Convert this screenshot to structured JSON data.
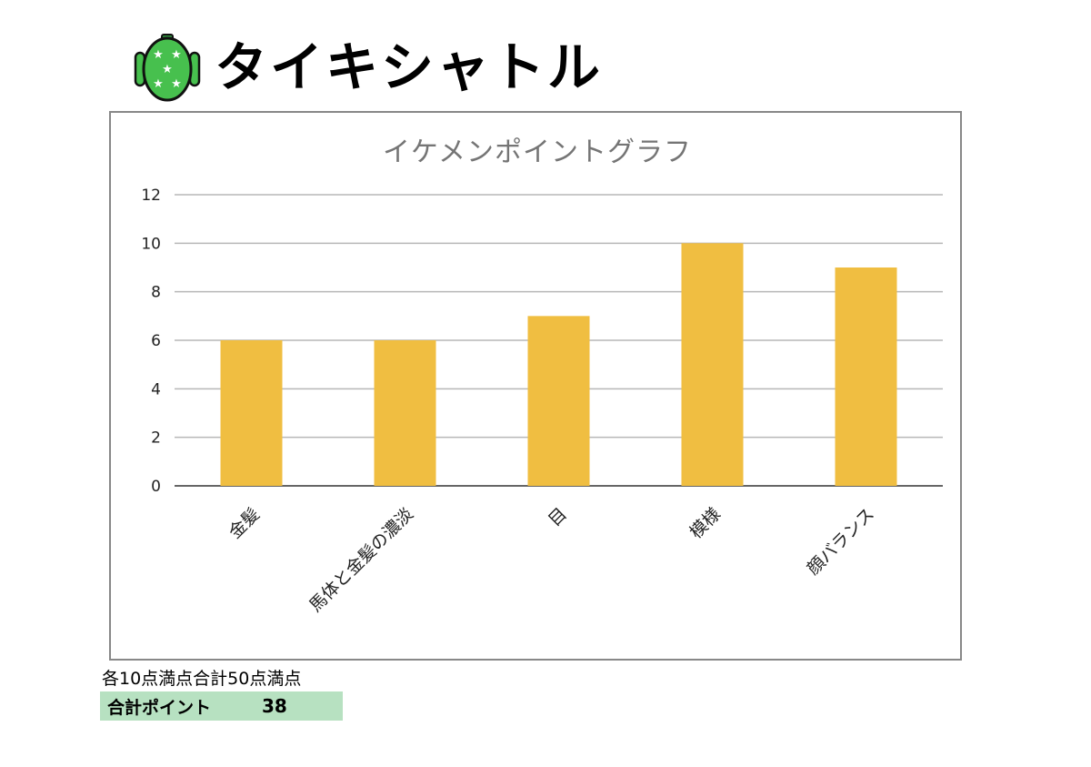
{
  "header": {
    "horse_name": "タイキシャトル",
    "logo_icon": "jockey-silks-icon"
  },
  "chart_data": {
    "type": "bar",
    "title": "イケメンポイントグラフ",
    "categories": [
      "金髪",
      "馬体と金髪の濃淡",
      "目",
      "模様",
      "顔バランス"
    ],
    "values": [
      6,
      6,
      7,
      10,
      9
    ],
    "ylim": [
      0,
      12
    ],
    "yticks": [
      0,
      2,
      4,
      6,
      8,
      10,
      12
    ],
    "grid": true,
    "bar_color": "#F0BE41",
    "grid_color": "#B7B7B7"
  },
  "footer": {
    "note": "各10点満点合計50点満点",
    "total_label": "合計ポイント",
    "total_value": "38",
    "total_bg": "#B7E1C1"
  }
}
